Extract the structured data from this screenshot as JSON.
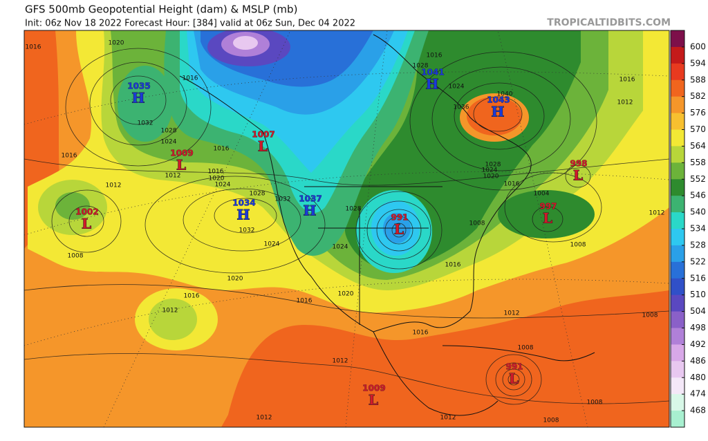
{
  "header": {
    "title": "GFS 500mb Geopotential Height (dam) & MSLP (mb)",
    "subtitle": "Init: 06z Nov 18 2022   Forecast Hour: [384]   valid at 06z Sun, Dec 04 2022",
    "site": "TROPICALTIDBITS.COM"
  },
  "colorbar": {
    "ticks": [
      600,
      594,
      588,
      582,
      576,
      570,
      564,
      558,
      552,
      546,
      540,
      534,
      528,
      522,
      516,
      510,
      504,
      498,
      492,
      486,
      480,
      474,
      468
    ],
    "colors": [
      "#7d0f4a",
      "#c41a1a",
      "#e83a1f",
      "#f0651e",
      "#f5962a",
      "#f7c030",
      "#f3e835",
      "#b8d63a",
      "#6cb33a",
      "#2e8b2e",
      "#3cb371",
      "#2ad8c8",
      "#2ec8f0",
      "#2aa0e8",
      "#2870d8",
      "#3050c8",
      "#5a48c0",
      "#8a60c8",
      "#b080d8",
      "#d8a8e8",
      "#e8c8f0",
      "#f4e8f8",
      "#d8f8e8",
      "#a8f0d0"
    ]
  },
  "centers": [
    {
      "type": "H",
      "value": 1035
    },
    {
      "type": "L",
      "value": 1009
    },
    {
      "type": "L",
      "value": 1002
    },
    {
      "type": "H",
      "value": 1034
    },
    {
      "type": "L",
      "value": 1007
    },
    {
      "type": "H",
      "value": 1037
    },
    {
      "type": "L",
      "value": 991
    },
    {
      "type": "H",
      "value": 1041
    },
    {
      "type": "H",
      "value": 1043
    },
    {
      "type": "L",
      "value": 998
    },
    {
      "type": "L",
      "value": 997
    },
    {
      "type": "L",
      "value": 991
    },
    {
      "type": "L",
      "value": 1009
    }
  ],
  "isobar_labels": [
    1016,
    1020,
    1016,
    1032,
    1028,
    1024,
    1016,
    1012,
    1016,
    1012,
    1016,
    1020,
    1024,
    1028,
    1032,
    1032,
    1024,
    1020,
    1016,
    1012,
    1008,
    1016,
    1020,
    1024,
    1028,
    1016,
    1012,
    1016,
    1008,
    1012,
    1012,
    1016,
    1004,
    1008,
    1016,
    1020,
    1024,
    1028,
    1036,
    1040,
    1016,
    1028,
    1024,
    1008,
    1012,
    1012,
    1012,
    1008,
    1008,
    1008
  ]
}
